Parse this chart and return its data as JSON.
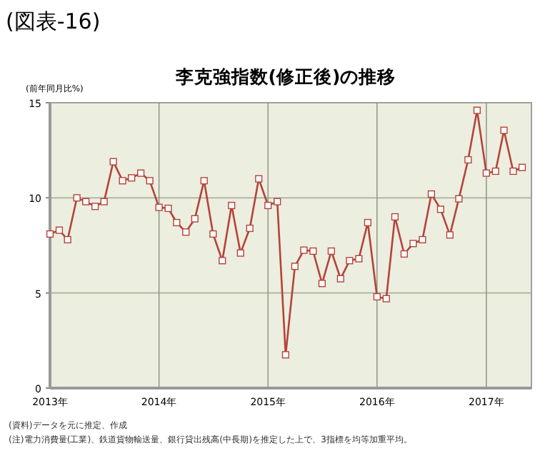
{
  "chart_data": {
    "type": "line",
    "title": "(図表-16)",
    "subtitle": "李克強指数(修正後)の推移",
    "ylabel": "(前年同月比%)",
    "x": [
      "2013-01",
      "2013-02",
      "2013-03",
      "2013-04",
      "2013-05",
      "2013-06",
      "2013-07",
      "2013-08",
      "2013-09",
      "2013-10",
      "2013-11",
      "2013-12",
      "2014-01",
      "2014-02",
      "2014-03",
      "2014-04",
      "2014-05",
      "2014-06",
      "2014-07",
      "2014-08",
      "2014-09",
      "2014-10",
      "2014-11",
      "2014-12",
      "2015-01",
      "2015-02",
      "2015-03",
      "2015-04",
      "2015-05",
      "2015-06",
      "2015-07",
      "2015-08",
      "2015-09",
      "2015-10",
      "2015-11",
      "2015-12",
      "2016-01",
      "2016-02",
      "2016-03",
      "2016-04",
      "2016-05",
      "2016-06",
      "2016-07",
      "2016-08",
      "2016-09",
      "2016-10",
      "2016-11",
      "2016-12",
      "2017-01",
      "2017-02",
      "2017-03",
      "2017-04",
      "2017-05"
    ],
    "series": [
      {
        "color": "#b5433a",
        "values": [
          8.1,
          8.3,
          7.8,
          10.0,
          9.8,
          9.55,
          9.8,
          11.9,
          10.9,
          11.05,
          11.3,
          10.9,
          9.5,
          9.45,
          8.7,
          8.2,
          8.9,
          10.9,
          8.1,
          6.7,
          9.6,
          7.1,
          8.4,
          11.0,
          9.6,
          9.8,
          1.75,
          6.4,
          7.25,
          7.2,
          5.5,
          7.2,
          5.75,
          6.7,
          6.8,
          8.7,
          4.8,
          4.7,
          9.0,
          7.05,
          7.6,
          7.8,
          10.2,
          9.4,
          8.05,
          9.95,
          12.0,
          14.6,
          11.3,
          11.4,
          13.55,
          11.4,
          11.6
        ]
      }
    ],
    "xlim": [
      "2013-01-01",
      "2017-06-01"
    ],
    "xticks": [
      {
        "value": "2013-01-01",
        "label": "2013年"
      },
      {
        "value": "2014-01-01",
        "label": "2014年"
      },
      {
        "value": "2015-01-01",
        "label": "2015年"
      },
      {
        "value": "2016-01-01",
        "label": "2016年"
      },
      {
        "value": "2017-01-01",
        "label": "2017年"
      }
    ],
    "ylim": [
      0,
      15
    ],
    "yticks": [
      0,
      5,
      10,
      15
    ],
    "grid": true,
    "marker": "square",
    "line_style": "solid",
    "annotations": [
      "(資料)データを元に推定、作成",
      "(注)電力消費量(工業)、鉄道貨物輸送量、銀行貸出残高(中長期)を推定した上で、3指標を均等加重平均。"
    ]
  }
}
